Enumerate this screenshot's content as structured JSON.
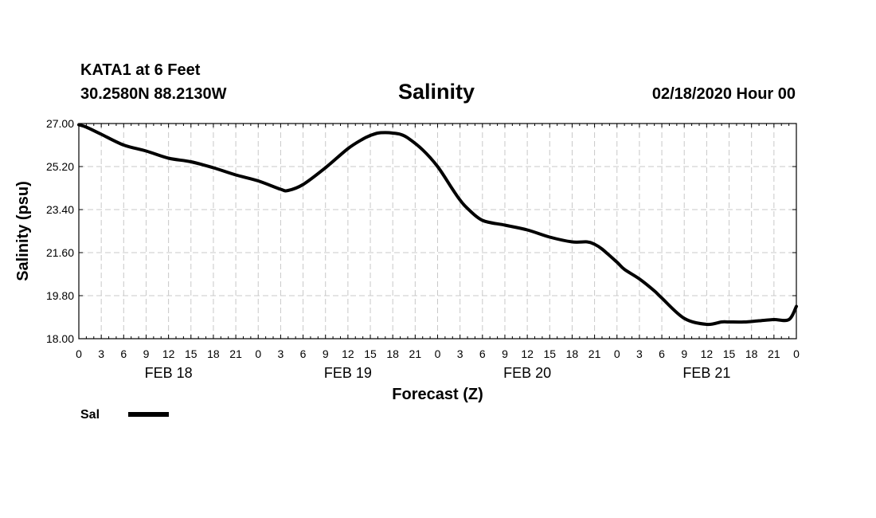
{
  "header": {
    "station": "KATA1 at 6 Feet",
    "coords": "30.2580N 88.2130W",
    "issued": "02/18/2020 Hour 00"
  },
  "chart_data": {
    "type": "line",
    "title": "Salinity",
    "xlabel": "Forecast (Z)",
    "ylabel": "Salinity (psu)",
    "ylim": [
      18.0,
      27.0
    ],
    "yticks": [
      "18.00",
      "19.80",
      "21.60",
      "23.40",
      "25.20",
      "27.00"
    ],
    "xlim_hours": [
      0,
      96
    ],
    "xtick_step_hours": 3,
    "xtick_labels": [
      "0",
      "3",
      "6",
      "9",
      "12",
      "15",
      "18",
      "21",
      "0",
      "3",
      "6",
      "9",
      "12",
      "15",
      "18",
      "21",
      "0",
      "3",
      "6",
      "9",
      "12",
      "15",
      "18",
      "21",
      "0",
      "3",
      "6",
      "9",
      "12",
      "15",
      "18",
      "21",
      "0"
    ],
    "day_labels": [
      {
        "label": "FEB 18",
        "center_hour": 12
      },
      {
        "label": "FEB 19",
        "center_hour": 36
      },
      {
        "label": "FEB 20",
        "center_hour": 60
      },
      {
        "label": "FEB 21",
        "center_hour": 84
      }
    ],
    "grid": true,
    "legend": "bottom-left",
    "series": [
      {
        "name": "Sal",
        "color": "#000000",
        "x": [
          0,
          1,
          3,
          6,
          9,
          12,
          15,
          18,
          21,
          24,
          27,
          28,
          30,
          33,
          36,
          38,
          39,
          40,
          41,
          42,
          43,
          44,
          46,
          48,
          50,
          51,
          52,
          54,
          57,
          60,
          63,
          66,
          68,
          69,
          70,
          72,
          73,
          75,
          77,
          78,
          81,
          84,
          86,
          87,
          89,
          91,
          93,
          95,
          96
        ],
        "values": [
          26.95,
          26.85,
          26.55,
          26.1,
          25.85,
          25.55,
          25.4,
          25.15,
          24.85,
          24.6,
          24.25,
          24.2,
          24.45,
          25.15,
          25.95,
          26.35,
          26.5,
          26.6,
          26.62,
          26.6,
          26.55,
          26.4,
          25.9,
          25.2,
          24.25,
          23.8,
          23.45,
          22.95,
          22.75,
          22.55,
          22.25,
          22.05,
          22.05,
          21.95,
          21.75,
          21.2,
          20.9,
          20.5,
          20.0,
          19.7,
          18.85,
          18.6,
          18.7,
          18.7,
          18.7,
          18.75,
          18.8,
          18.8,
          19.35
        ]
      }
    ]
  }
}
